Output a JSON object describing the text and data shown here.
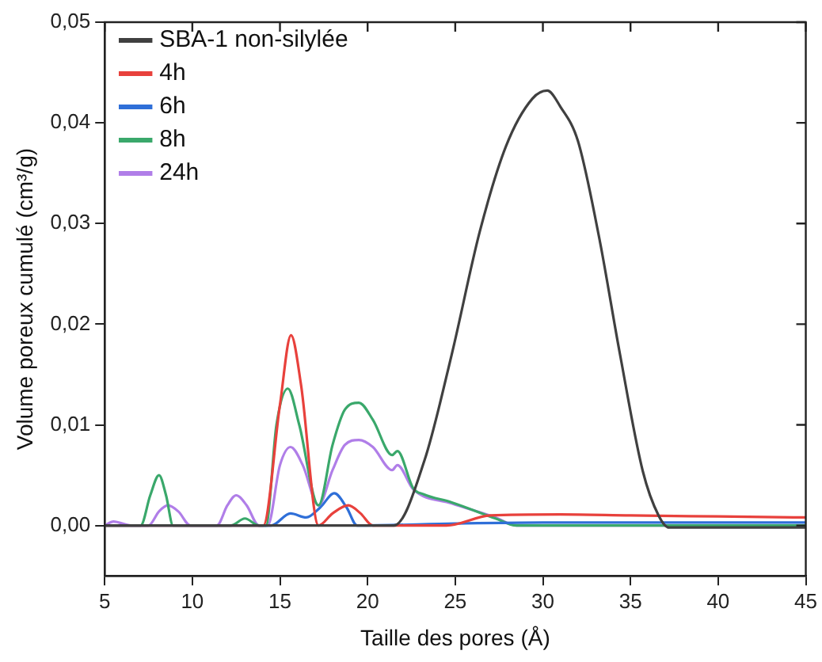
{
  "chart_data": {
    "type": "line",
    "xlabel": "Taille des pores (Å)",
    "ylabel": "Volume poreux cumulé (cm³/g)",
    "xlim": [
      5,
      45
    ],
    "xticks": [
      5,
      10,
      15,
      20,
      25,
      30,
      35,
      40,
      45
    ],
    "ylim": [
      -0.005,
      0.05
    ],
    "yticks": [
      {
        "value": 0,
        "label": "0,00"
      },
      {
        "value": 0.01,
        "label": "0,01"
      },
      {
        "value": 0.02,
        "label": "0,02"
      },
      {
        "value": 0.03,
        "label": "0,03"
      },
      {
        "value": 0.04,
        "label": "0,04"
      },
      {
        "value": 0.05,
        "label": "0,05"
      }
    ],
    "grid": false,
    "legend": "top left",
    "marker": "none",
    "line_style": "solid",
    "series": [
      {
        "name": "SBA-1 non-silylée",
        "color": "#404040",
        "x": [
          5,
          21.5,
          23.25,
          24.8,
          26.4,
          27.9,
          29.4,
          30.25,
          31.0,
          32.0,
          33.2,
          34.4,
          35.7,
          36.6,
          37.2,
          45
        ],
        "values": [
          0,
          0,
          0.0065,
          0.017,
          0.0292,
          0.0377,
          0.0424,
          0.0432,
          0.0416,
          0.0382,
          0.0287,
          0.017,
          0.0054,
          0.001,
          -0.0002,
          -0.0002
        ]
      },
      {
        "name": "4h",
        "color": "#e8413c",
        "x": [
          5,
          14.05,
          15.0,
          15.63,
          16.2,
          17.2,
          18.0,
          18.9,
          19.6,
          20.3,
          24.5,
          27,
          31,
          35,
          40,
          45
        ],
        "values": [
          0,
          0,
          0.012,
          0.0189,
          0.014,
          0,
          0.0012,
          0.002,
          0.0012,
          0,
          0,
          0.001,
          0.0011,
          0.001,
          0.0009,
          0.0008
        ]
      },
      {
        "name": "6h",
        "color": "#2f6fd8",
        "x": [
          5,
          14.5,
          15.6,
          16.5,
          17.3,
          18.1,
          18.8,
          19.4,
          25,
          30,
          45
        ],
        "values": [
          0,
          0,
          0.0012,
          0.0008,
          0.0018,
          0.0032,
          0.0018,
          0,
          0.0002,
          0.0003,
          0.0003
        ]
      },
      {
        "name": "8h",
        "color": "#3aa86b",
        "x": [
          5,
          7.05,
          7.6,
          8.1,
          8.5,
          8.9,
          12.2,
          13.0,
          13.8,
          14.2,
          14.8,
          15.45,
          16.1,
          17.2,
          18.0,
          18.7,
          19.5,
          20.3,
          21.4,
          21.7,
          22.6,
          23.2,
          24.8,
          27.3,
          28.5,
          45
        ],
        "values": [
          0,
          0,
          0.003,
          0.005,
          0.003,
          0,
          0,
          0.0007,
          0,
          0,
          0.01,
          0.0136,
          0.01,
          0.002,
          0.008,
          0.0115,
          0.0122,
          0.0105,
          0.007,
          0.0074,
          0.0037,
          0.0031,
          0.0023,
          0.0007,
          0,
          0
        ]
      },
      {
        "name": "24h",
        "color": "#b07ee8",
        "x": [
          5,
          5.5,
          6.5,
          7.5,
          8.1,
          8.6,
          9.2,
          9.9,
          11.4,
          12.0,
          12.5,
          13.1,
          13.8,
          14.3,
          15.0,
          15.6,
          16.3,
          17.2,
          18.0,
          18.7,
          19.5,
          20.3,
          21.4,
          21.7,
          22.6,
          24.8,
          27.3,
          28.5,
          45
        ],
        "values": [
          0,
          0.0004,
          0,
          0,
          0.0014,
          0.002,
          0.0014,
          0,
          0,
          0.002,
          0.003,
          0.002,
          0,
          0,
          0.006,
          0.0078,
          0.006,
          0.002,
          0.0055,
          0.008,
          0.0085,
          0.0078,
          0.0055,
          0.006,
          0.0036,
          0.0022,
          0.0008,
          0,
          0
        ]
      }
    ]
  }
}
